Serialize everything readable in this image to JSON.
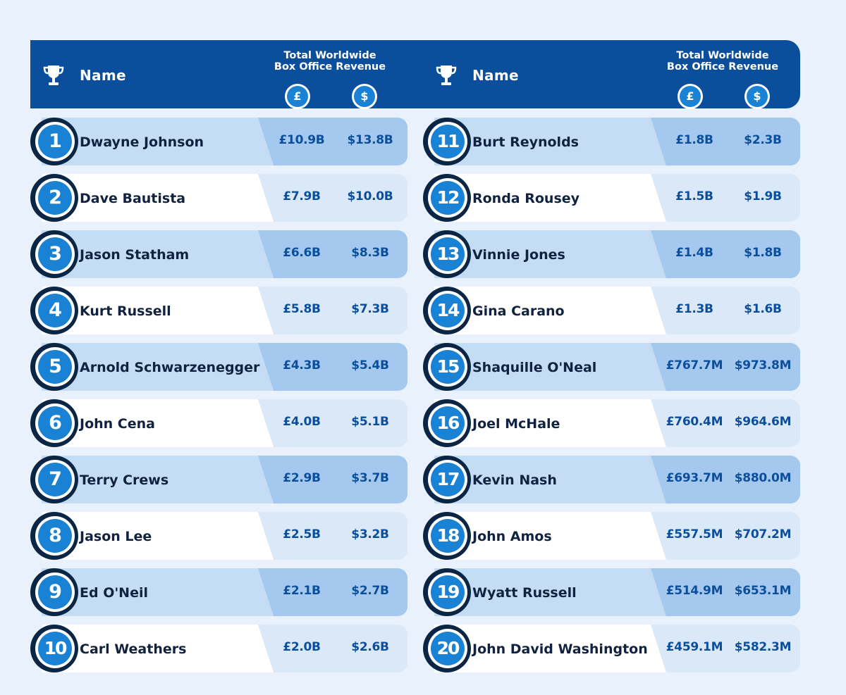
{
  "header": {
    "name_label": "Name",
    "revenue_label_line1": "Total Worldwide",
    "revenue_label_line2": "Box Office Revenue",
    "gbp_symbol": "£",
    "usd_symbol": "$",
    "trophy_icon": "trophy-icon"
  },
  "colors": {
    "header_bg": "#0b4f9c",
    "accent": "#1a82d4",
    "band_odd": "#c4dcf4",
    "band_even": "#ffffff",
    "text_dark": "#10223f",
    "value_text": "#0b4f9c"
  },
  "chart_data": {
    "type": "table",
    "columns": [
      "Rank",
      "Name",
      "£",
      "$"
    ],
    "rows": [
      {
        "rank": "1",
        "name": "Dwayne Johnson",
        "gbp": "£10.9B",
        "usd": "$13.8B"
      },
      {
        "rank": "2",
        "name": "Dave Bautista",
        "gbp": "£7.9B",
        "usd": "$10.0B"
      },
      {
        "rank": "3",
        "name": "Jason Statham",
        "gbp": "£6.6B",
        "usd": "$8.3B"
      },
      {
        "rank": "4",
        "name": "Kurt Russell",
        "gbp": "£5.8B",
        "usd": "$7.3B"
      },
      {
        "rank": "5",
        "name": "Arnold Schwarzenegger",
        "gbp": "£4.3B",
        "usd": "$5.4B"
      },
      {
        "rank": "6",
        "name": "John Cena",
        "gbp": "£4.0B",
        "usd": "$5.1B"
      },
      {
        "rank": "7",
        "name": "Terry Crews",
        "gbp": "£2.9B",
        "usd": "$3.7B"
      },
      {
        "rank": "8",
        "name": "Jason Lee",
        "gbp": "£2.5B",
        "usd": "$3.2B"
      },
      {
        "rank": "9",
        "name": "Ed O'Neil",
        "gbp": "£2.1B",
        "usd": "$2.7B"
      },
      {
        "rank": "10",
        "name": "Carl Weathers",
        "gbp": "£2.0B",
        "usd": "$2.6B"
      },
      {
        "rank": "11",
        "name": "Burt Reynolds",
        "gbp": "£1.8B",
        "usd": "$2.3B"
      },
      {
        "rank": "12",
        "name": "Ronda Rousey",
        "gbp": "£1.5B",
        "usd": "$1.9B"
      },
      {
        "rank": "13",
        "name": "Vinnie Jones",
        "gbp": "£1.4B",
        "usd": "$1.8B"
      },
      {
        "rank": "14",
        "name": "Gina Carano",
        "gbp": "£1.3B",
        "usd": "$1.6B"
      },
      {
        "rank": "15",
        "name": "Shaquille O'Neal",
        "gbp": "£767.7M",
        "usd": "$973.8M"
      },
      {
        "rank": "16",
        "name": "Joel McHale",
        "gbp": "£760.4M",
        "usd": "$964.6M"
      },
      {
        "rank": "17",
        "name": "Kevin Nash",
        "gbp": "£693.7M",
        "usd": "$880.0M"
      },
      {
        "rank": "18",
        "name": "John Amos",
        "gbp": "£557.5M",
        "usd": "$707.2M"
      },
      {
        "rank": "19",
        "name": "Wyatt Russell",
        "gbp": "£514.9M",
        "usd": "$653.1M"
      },
      {
        "rank": "20",
        "name": "John David Washington",
        "gbp": "£459.1M",
        "usd": "$582.3M"
      }
    ]
  }
}
